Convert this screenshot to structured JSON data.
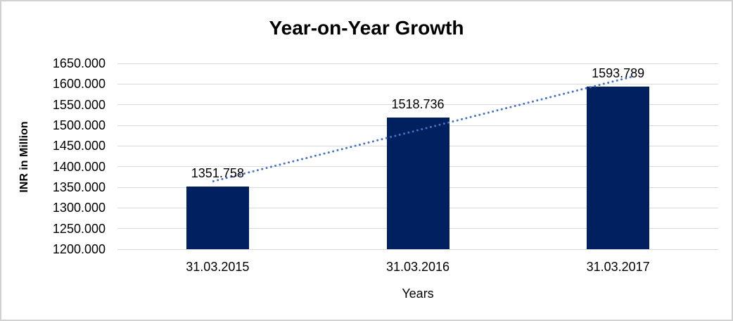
{
  "chart_data": {
    "type": "bar",
    "title": "Year-on-Year Growth",
    "xlabel": "Years",
    "ylabel": "INR in Million",
    "categories": [
      "31.03.2015",
      "31.03.2016",
      "31.03.2017"
    ],
    "values": [
      1351.758,
      1518.736,
      1593.789
    ],
    "value_labels": [
      "1351.758",
      "1518.736",
      "1593.789"
    ],
    "ylim": [
      1200,
      1650
    ],
    "ytick_step": 50,
    "yticks": [
      {
        "value": 1650,
        "label": "1650.000"
      },
      {
        "value": 1600,
        "label": "1600.000"
      },
      {
        "value": 1550,
        "label": "1550.000"
      },
      {
        "value": 1500,
        "label": "1500.000"
      },
      {
        "value": 1450,
        "label": "1450.000"
      },
      {
        "value": 1400,
        "label": "1400.000"
      },
      {
        "value": 1350,
        "label": "1350.000"
      },
      {
        "value": 1300,
        "label": "1300.000"
      },
      {
        "value": 1250,
        "label": "1250.000"
      },
      {
        "value": 1200,
        "label": "1200.000"
      }
    ],
    "grid": "horizontal",
    "legend": "none",
    "trendline": {
      "type": "linear",
      "style": "dotted",
      "color": "#4472C4"
    },
    "colors": {
      "bar": "#002060",
      "gridline": "#D9D9D9",
      "text": "#000000",
      "frame_border": "#D1D1D1",
      "background": "#FFFFFF"
    }
  }
}
